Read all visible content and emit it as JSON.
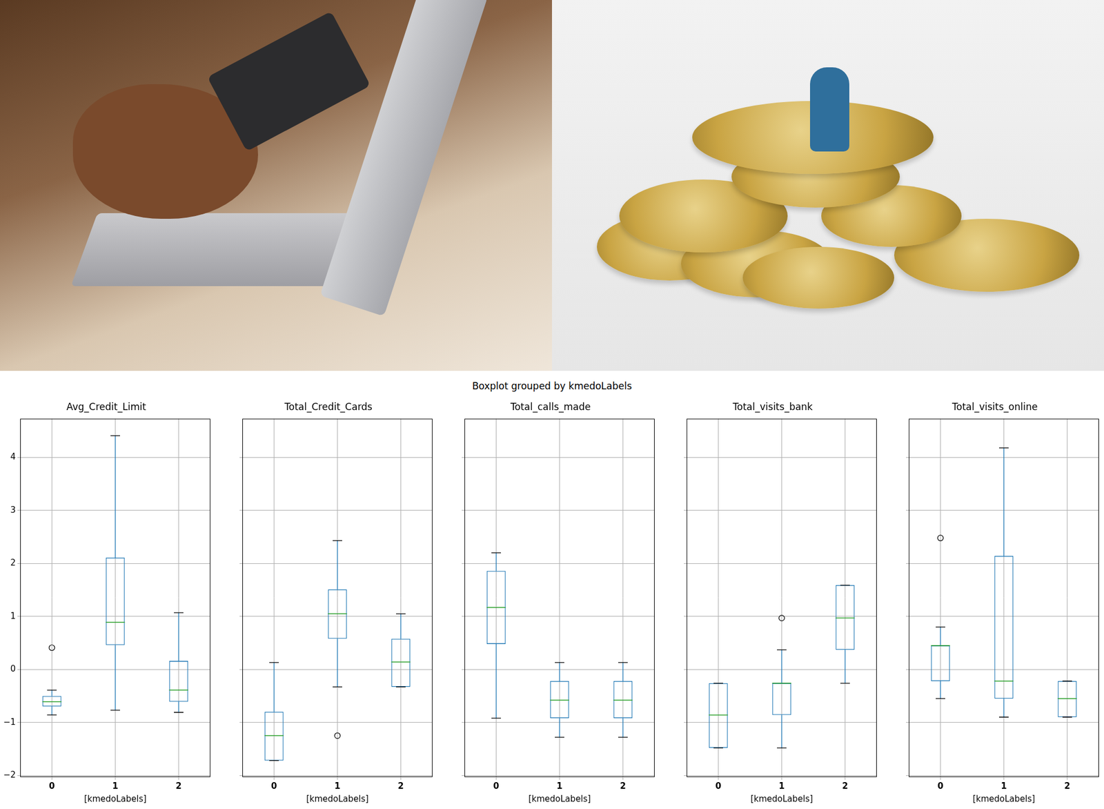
{
  "title": "Boxplot grouped by kmedoLabels",
  "chart_data": [
    {
      "type": "boxplot",
      "title": "Avg_Credit_Limit",
      "x_label": "[kmedoLabels]",
      "categories": [
        "0",
        "1",
        "2"
      ],
      "values": [
        {
          "whislo": -0.86,
          "q1": -0.7,
          "med": -0.61,
          "q3": -0.5,
          "whishi": -0.39,
          "fliers": [
            0.41
          ]
        },
        {
          "whislo": -0.77,
          "q1": 0.46,
          "med": 0.89,
          "q3": 2.11,
          "whishi": 4.41,
          "fliers": []
        },
        {
          "whislo": -0.81,
          "q1": -0.61,
          "med": -0.39,
          "q3": 0.16,
          "whishi": 1.07,
          "fliers": []
        }
      ],
      "color": "#1f77b4",
      "ylim": [
        -2.03,
        4.73
      ],
      "yticks": [
        {
          "value": -2,
          "label": "−2"
        },
        {
          "value": -1,
          "label": "−1"
        },
        0,
        1,
        2,
        3,
        4
      ],
      "grid": true
    },
    {
      "type": "boxplot",
      "title": "Total_Credit_Cards",
      "x_label": "[kmedoLabels]",
      "categories": [
        "0",
        "1",
        "2"
      ],
      "values": [
        {
          "whislo": -1.72,
          "q1": -1.72,
          "med": -1.25,
          "q3": -0.8,
          "whishi": 0.13,
          "fliers": []
        },
        {
          "whislo": -0.33,
          "q1": 0.58,
          "med": 1.05,
          "q3": 1.51,
          "whishi": 2.43,
          "fliers": [
            -1.25
          ]
        },
        {
          "whislo": -0.33,
          "q1": -0.33,
          "med": 0.14,
          "q3": 0.58,
          "whishi": 1.05,
          "fliers": []
        }
      ],
      "color": "#1f77b4",
      "ylim": [
        -2.03,
        4.73
      ],
      "yticks": [
        {
          "value": -2,
          "label": "−2"
        },
        {
          "value": -1,
          "label": "−1"
        },
        0,
        1,
        2,
        3,
        4
      ],
      "grid": true,
      "tick_labels": "x"
    },
    {
      "type": "boxplot",
      "title": "Total_calls_made",
      "x_label": "[kmedoLabels]",
      "categories": [
        "0",
        "1",
        "2"
      ],
      "values": [
        {
          "whislo": -0.92,
          "q1": 0.48,
          "med": 1.17,
          "q3": 1.86,
          "whishi": 2.2,
          "fliers": []
        },
        {
          "whislo": -1.28,
          "q1": -0.92,
          "med": -0.58,
          "q3": -0.22,
          "whishi": 0.13,
          "fliers": []
        },
        {
          "whislo": -1.28,
          "q1": -0.92,
          "med": -0.58,
          "q3": -0.22,
          "whishi": 0.13,
          "fliers": []
        }
      ],
      "color": "#1f77b4",
      "ylim": [
        -2.03,
        4.73
      ],
      "yticks": [
        {
          "value": -2,
          "label": "−2"
        },
        {
          "value": -1,
          "label": "−1"
        },
        0,
        1,
        2,
        3,
        4
      ],
      "grid": true,
      "tick_labels": "x"
    },
    {
      "type": "boxplot",
      "title": "Total_visits_bank",
      "x_label": "[kmedoLabels]",
      "categories": [
        "0",
        "1",
        "2"
      ],
      "values": [
        {
          "whislo": -1.48,
          "q1": -1.48,
          "med": -0.86,
          "q3": -0.26,
          "whishi": -0.26,
          "fliers": []
        },
        {
          "whislo": -1.48,
          "q1": -0.86,
          "med": -0.26,
          "q3": -0.26,
          "whishi": 0.37,
          "fliers": [
            0.97
          ]
        },
        {
          "whislo": -0.26,
          "q1": 0.37,
          "med": 0.97,
          "q3": 1.59,
          "whishi": 1.59,
          "fliers": []
        }
      ],
      "color": "#1f77b4",
      "ylim": [
        -2.03,
        4.73
      ],
      "yticks": [
        {
          "value": -2,
          "label": "−2"
        },
        {
          "value": -1,
          "label": "−1"
        },
        0,
        1,
        2,
        3,
        4
      ],
      "grid": true,
      "tick_labels": "x"
    },
    {
      "type": "boxplot",
      "title": "Total_visits_online",
      "x_label": "[kmedoLabels]",
      "categories": [
        "0",
        "1",
        "2"
      ],
      "values": [
        {
          "whislo": -0.55,
          "q1": -0.22,
          "med": 0.45,
          "q3": 0.45,
          "whishi": 0.8,
          "fliers": [
            2.48
          ]
        },
        {
          "whislo": -0.9,
          "q1": -0.55,
          "med": -0.22,
          "q3": 2.14,
          "whishi": 4.18,
          "fliers": []
        },
        {
          "whislo": -0.9,
          "q1": -0.9,
          "med": -0.55,
          "q3": -0.22,
          "whishi": -0.22,
          "fliers": []
        }
      ],
      "color": "#1f77b4",
      "ylim": [
        -2.03,
        4.73
      ],
      "yticks": [
        {
          "value": -2,
          "label": "−2"
        },
        {
          "value": -1,
          "label": "−1"
        },
        0,
        1,
        2,
        3,
        4
      ],
      "grid": true,
      "tick_labels": "x"
    }
  ]
}
